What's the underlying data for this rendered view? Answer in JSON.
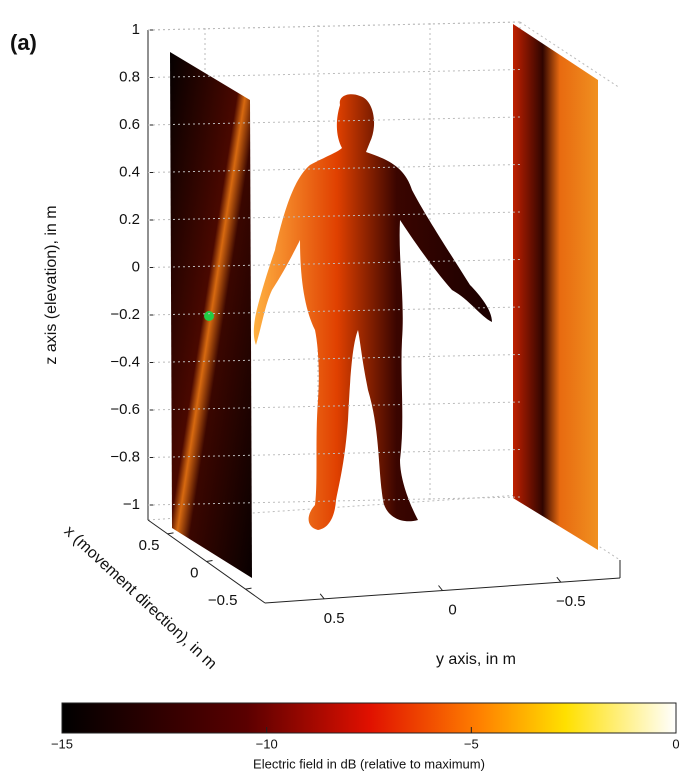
{
  "chart_data": {
    "type": "field3d",
    "panel_label": "(a)",
    "zlabel": "z axis (elevation), in m",
    "xlabel": "x (movement direction), in m",
    "ylabel": "y axis, in m",
    "zlim": [
      -1.1,
      1
    ],
    "zticks": [
      1,
      0.8,
      0.6,
      0.4,
      0.2,
      0,
      {
        "value": -0.2,
        "label": "−0.2"
      },
      {
        "value": -0.4,
        "label": "−0.4"
      },
      {
        "value": -0.6,
        "label": "−0.6"
      },
      {
        "value": -0.8,
        "label": "−0.8"
      },
      {
        "value": -1,
        "label": "−1"
      }
    ],
    "xlim": [
      -0.75,
      0.75
    ],
    "xticks": [
      0.5,
      0,
      {
        "value": -0.5,
        "label": "−0.5"
      }
    ],
    "ylim": [
      -0.75,
      0.75
    ],
    "yticks": [
      0.5,
      0,
      {
        "value": -0.5,
        "label": "−0.5"
      }
    ],
    "colorbar": {
      "label": "Electric field in dB (relative to maximum)",
      "clim": [
        -15,
        0
      ],
      "ticks": [
        {
          "value": -15,
          "label": "−15"
        },
        {
          "value": -10,
          "label": "−10"
        },
        {
          "value": -5,
          "label": "−5"
        },
        0
      ]
    }
  }
}
